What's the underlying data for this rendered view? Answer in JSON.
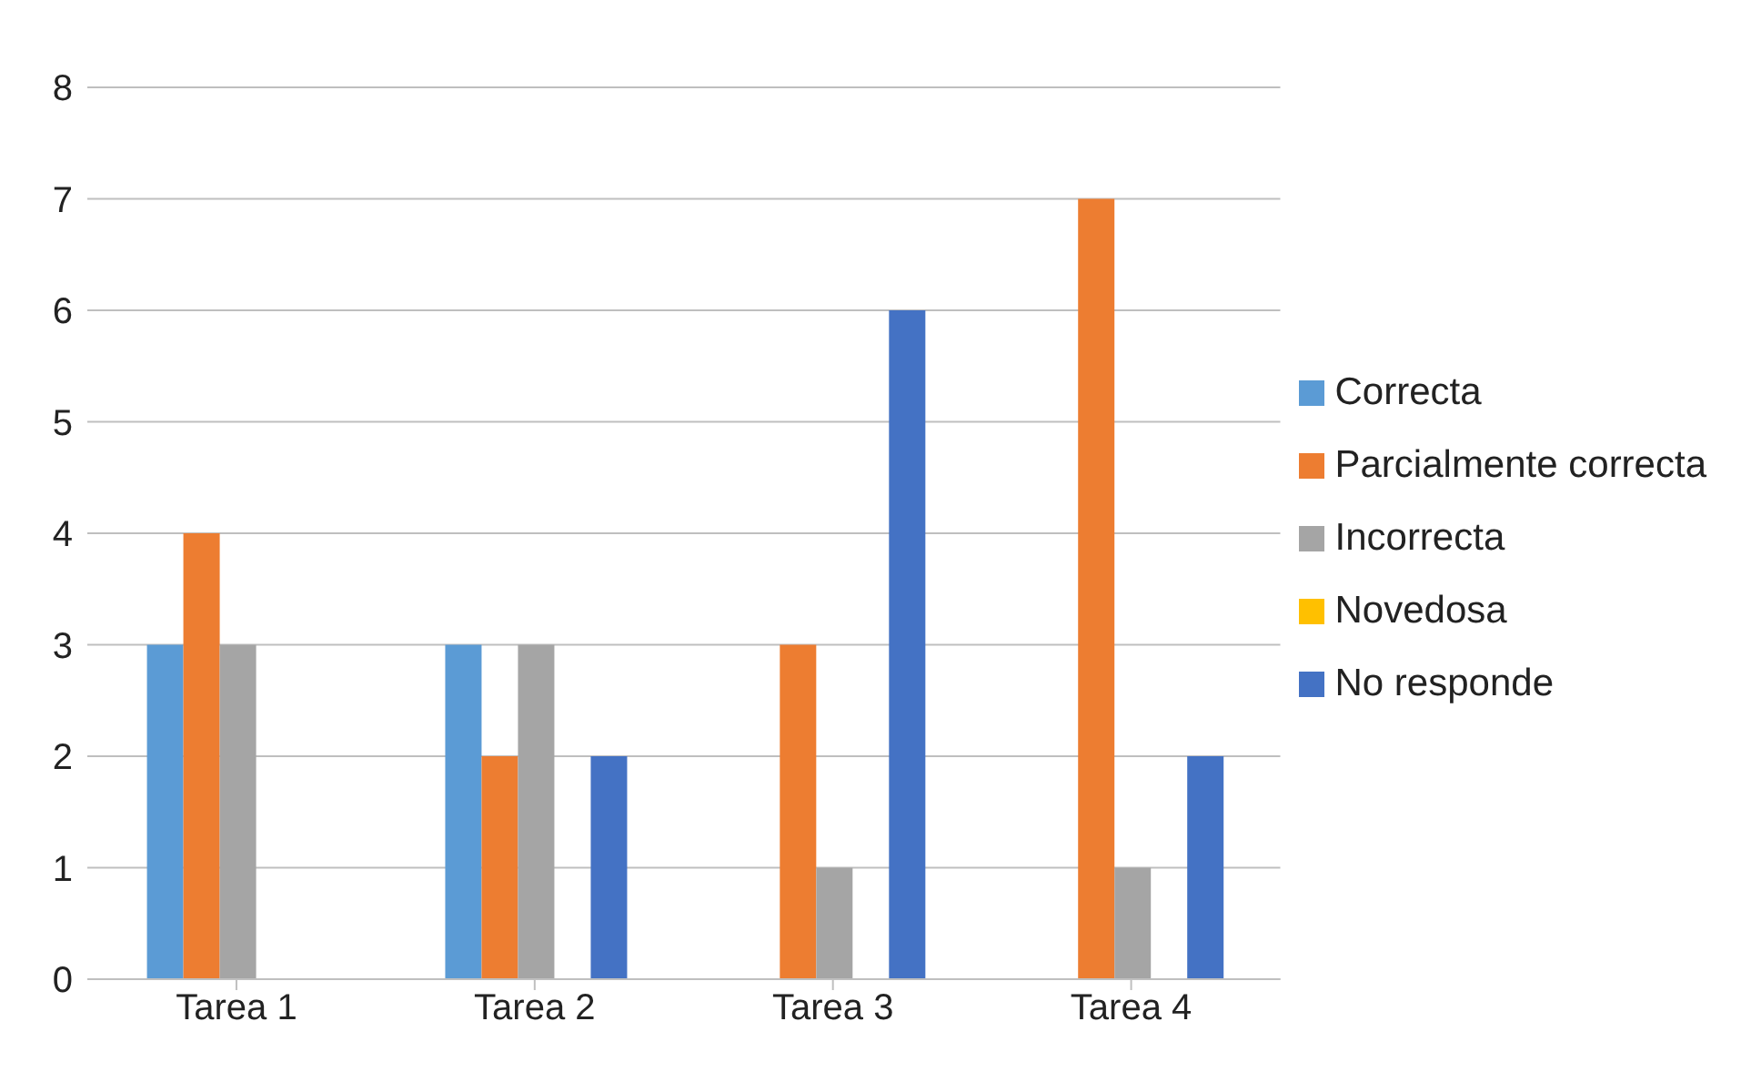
{
  "chart_data": {
    "type": "bar",
    "categories": [
      "Tarea 1",
      "Tarea 2",
      "Tarea 3",
      "Tarea 4"
    ],
    "series": [
      {
        "name": "Correcta",
        "color": "#5b9bd5",
        "values": [
          3,
          3,
          0,
          0
        ]
      },
      {
        "name": "Parcialmente correcta",
        "color": "#ed7d31",
        "values": [
          4,
          2,
          3,
          7
        ]
      },
      {
        "name": "Incorrecta",
        "color": "#a5a5a5",
        "values": [
          3,
          3,
          1,
          1
        ]
      },
      {
        "name": "Novedosa",
        "color": "#ffc000",
        "values": [
          0,
          0,
          0,
          0
        ]
      },
      {
        "name": "No responde",
        "color": "#4472c4",
        "values": [
          0,
          2,
          6,
          2
        ]
      }
    ],
    "ylim": [
      0,
      8
    ],
    "yticks": [
      0,
      1,
      2,
      3,
      4,
      5,
      6,
      7,
      8
    ],
    "grid": "y",
    "legend": "right"
  }
}
